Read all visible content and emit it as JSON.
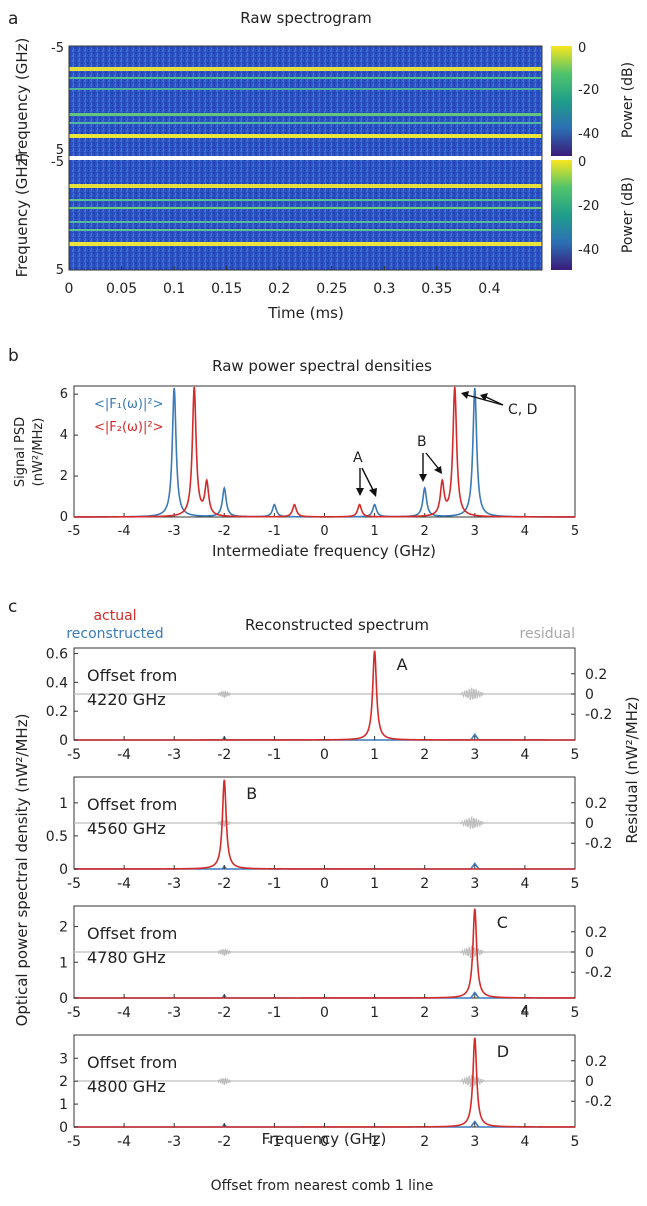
{
  "panel_a": {
    "letter": "a",
    "title": "Raw spectrogram",
    "ylabel_top": "Frequency (GHz)",
    "ylabel_bottom": "Frequency (GHz)",
    "y_ticks_top": [
      "-5",
      "5"
    ],
    "y_ticks_bottom": [
      "-5",
      "5"
    ],
    "x_ticks": [
      "0",
      "0.05",
      "0.1",
      "0.15",
      "0.2",
      "0.25",
      "0.3",
      "0.35",
      "0.4"
    ],
    "xlabel": "Time (ms)",
    "colorbar_ticks": [
      "0",
      "-20",
      "-40"
    ],
    "colorbar_label": "Power (dB)"
  },
  "panel_b": {
    "letter": "b",
    "title": "Raw power spectral densities",
    "ylabel": [
      "Signal PSD",
      "(nW²/MHz)"
    ],
    "xlabel": "Intermediate frequency (GHz)",
    "x_ticks": [
      "-5",
      "-4",
      "-3",
      "-2",
      "-1",
      "0",
      "1",
      "2",
      "3",
      "4",
      "5"
    ],
    "y_ticks": [
      "0",
      "2",
      "4",
      "6"
    ],
    "legend": [
      "<|F₁(ω)|²>",
      "<|F₂(ω)|²>"
    ],
    "annotations": [
      "A",
      "B",
      "C, D"
    ]
  },
  "panel_c": {
    "letter": "c",
    "title": "Reconstructed spectrum",
    "legend_actual": "actual",
    "legend_reconstructed": "reconstructed",
    "legend_residual": "residual",
    "ylabel_left": "Optical power spectral density (nW²/MHz)",
    "ylabel_right": "Residual (nW²/MHz)",
    "xlabel": "Frequency (GHz)",
    "footer": "Offset from nearest comb 1 line",
    "x_ticks": [
      "-5",
      "-4",
      "-3",
      "-2",
      "-1",
      "0",
      "1",
      "2",
      "3",
      "4",
      "5"
    ],
    "right_ticks": [
      "0.2",
      "0",
      "-0.2"
    ],
    "subplots": [
      {
        "offset_line1": "Offset from",
        "offset_line2": "4220 GHz",
        "label": "A",
        "y_ticks": [
          "0.6",
          "0.4",
          "0.2",
          "0"
        ]
      },
      {
        "offset_line1": "Offset from",
        "offset_line2": "4560 GHz",
        "label": "B",
        "y_ticks": [
          "1",
          "0.5",
          "0"
        ]
      },
      {
        "offset_line1": "Offset from",
        "offset_line2": "4780 GHz",
        "label": "C",
        "y_ticks": [
          "2",
          "1",
          "0"
        ],
        "extra_tick": "4"
      },
      {
        "offset_line1": "Offset from",
        "offset_line2": "4800 GHz",
        "label": "D",
        "y_ticks": [
          "3",
          "2",
          "1",
          "0"
        ]
      }
    ]
  },
  "colors": {
    "blue": "#3a7ab8",
    "red": "#d42a2a",
    "gray": "#bdbdbd"
  },
  "chart_data": [
    {
      "type": "heatmap",
      "title": "Raw spectrogram",
      "xlabel": "Time (ms)",
      "ylabel": "Frequency (GHz)",
      "xlim": [
        0,
        0.45
      ],
      "ylim": [
        -5,
        5
      ],
      "colorbar_range_dB": [
        -48,
        0
      ],
      "bright_lines_top_GHz": [
        -3.0,
        -2.0,
        -1.0,
        1.0,
        2.0,
        3.0
      ],
      "bright_lines_bottom_GHz": [
        -2.7,
        -1.6,
        -0.7,
        0.7,
        2.3,
        2.6
      ]
    },
    {
      "type": "line",
      "title": "Raw power spectral densities",
      "xlabel": "Intermediate frequency (GHz)",
      "ylabel": "Signal PSD (nW²/MHz)",
      "xlim": [
        -5,
        5
      ],
      "ylim": [
        0,
        6.4
      ],
      "series": [
        {
          "name": "<|F₁(ω)|²>",
          "peaks": [
            {
              "x": -3.0,
              "y": 6.3
            },
            {
              "x": -2.0,
              "y": 1.4
            },
            {
              "x": -1.0,
              "y": 0.6
            },
            {
              "x": 1.0,
              "y": 0.6
            },
            {
              "x": 2.0,
              "y": 1.4
            },
            {
              "x": 3.0,
              "y": 6.3
            }
          ]
        },
        {
          "name": "<|F₂(ω)|²>",
          "peaks": [
            {
              "x": -2.6,
              "y": 6.3
            },
            {
              "x": -2.35,
              "y": 1.6
            },
            {
              "x": -0.6,
              "y": 0.6
            },
            {
              "x": 0.7,
              "y": 0.6
            },
            {
              "x": 2.35,
              "y": 1.6
            },
            {
              "x": 2.6,
              "y": 6.3
            }
          ]
        }
      ]
    },
    {
      "type": "line",
      "title": "Reconstructed spectrum",
      "xlabel": "Frequency (GHz)",
      "xlim": [
        -5,
        5
      ],
      "subplots": [
        {
          "offset": "4220 GHz",
          "ylim": [
            0,
            0.62
          ],
          "peak": {
            "x": 1.0,
            "y": 0.62
          }
        },
        {
          "offset": "4560 GHz",
          "ylim": [
            0,
            1.35
          ],
          "peak": {
            "x": -2.0,
            "y": 1.35
          }
        },
        {
          "offset": "4780 GHz",
          "ylim": [
            0,
            2.5
          ],
          "peak": {
            "x": 3.0,
            "y": 2.5
          }
        },
        {
          "offset": "4800 GHz",
          "ylim": [
            0,
            3.9
          ],
          "peak": {
            "x": 3.0,
            "y": 3.9
          }
        }
      ]
    }
  ]
}
